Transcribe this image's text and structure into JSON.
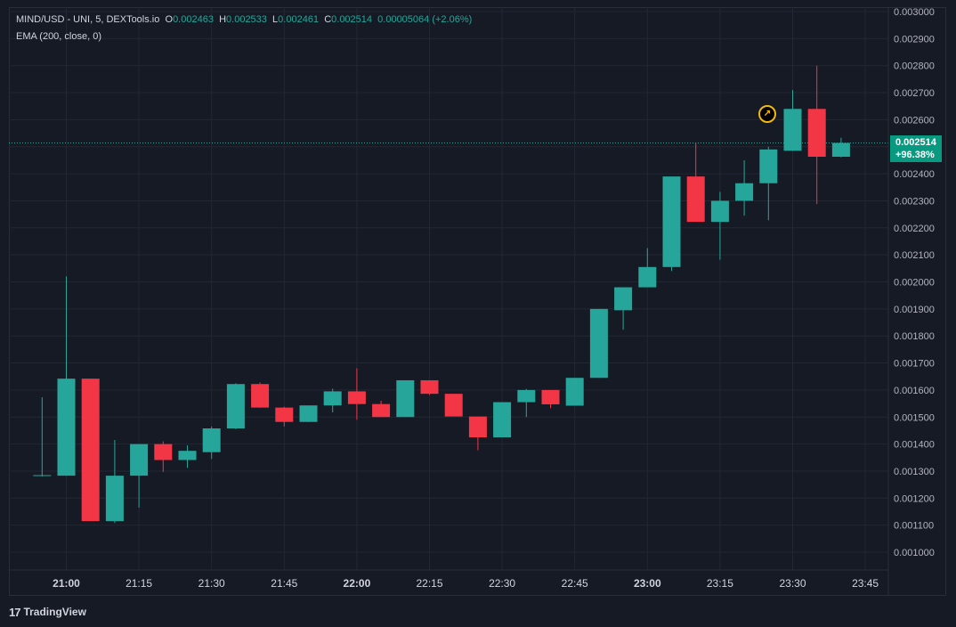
{
  "legend": {
    "symbol": "MIND/USD - UNI, 5, DEXTools.io",
    "o_label": "O",
    "o_value": "0.002463",
    "h_label": "H",
    "h_value": "0.002533",
    "l_label": "L",
    "l_value": "0.002461",
    "c_label": "C",
    "c_value": "0.002514",
    "change": "0.00005064 (+2.06%)"
  },
  "indicator": "EMA (200, close, 0)",
  "last_price": {
    "price": "0.002514",
    "percent": "+96.38%"
  },
  "badge_icon": "rocket-icon",
  "footer": {
    "logo_glyph": "17",
    "brand": "TradingView"
  },
  "colors": {
    "up": "#26a69a",
    "down": "#f23645",
    "background": "#161a25",
    "grid": "#232733",
    "text": "#d1d4dc",
    "price_tag": "#089981"
  },
  "chart_data": {
    "type": "candlestick",
    "interval_minutes": 5,
    "ylim": [
      0.00095,
      0.003
    ],
    "y_ticks": [
      "0.001000",
      "0.001100",
      "0.001200",
      "0.001300",
      "0.001400",
      "0.001500",
      "0.001600",
      "0.001700",
      "0.001800",
      "0.001900",
      "0.002000",
      "0.002100",
      "0.002200",
      "0.002300",
      "0.002400",
      "0.002500",
      "0.002600",
      "0.002700",
      "0.002800",
      "0.002900",
      "0.003000"
    ],
    "x_ticks": [
      "21:00",
      "21:15",
      "21:30",
      "21:45",
      "22:00",
      "22:15",
      "22:30",
      "22:45",
      "23:00",
      "23:15",
      "23:30",
      "23:45"
    ],
    "x_ticks_bold": [
      "21:00",
      "22:00",
      "23:00"
    ],
    "last_price_line": 0.002514,
    "candles": [
      {
        "t": "20:55",
        "o": 0.001282,
        "h": 0.001573,
        "l": 0.00128,
        "c": 0.001285
      },
      {
        "t": "21:00",
        "o": 0.001283,
        "h": 0.00202,
        "l": 0.001283,
        "c": 0.001642
      },
      {
        "t": "21:05",
        "o": 0.001642,
        "h": 0.001642,
        "l": 0.001115,
        "c": 0.001115
      },
      {
        "t": "21:10",
        "o": 0.001115,
        "h": 0.001415,
        "l": 0.001108,
        "c": 0.001283
      },
      {
        "t": "21:15",
        "o": 0.001283,
        "h": 0.0014,
        "l": 0.001165,
        "c": 0.0014
      },
      {
        "t": "21:20",
        "o": 0.0014,
        "h": 0.00141,
        "l": 0.001297,
        "c": 0.001341
      },
      {
        "t": "21:25",
        "o": 0.001341,
        "h": 0.001395,
        "l": 0.001312,
        "c": 0.001375
      },
      {
        "t": "21:30",
        "o": 0.00137,
        "h": 0.001465,
        "l": 0.001345,
        "c": 0.001458
      },
      {
        "t": "21:35",
        "o": 0.001458,
        "h": 0.001625,
        "l": 0.001455,
        "c": 0.001622
      },
      {
        "t": "21:40",
        "o": 0.001622,
        "h": 0.001628,
        "l": 0.001535,
        "c": 0.001535
      },
      {
        "t": "21:45",
        "o": 0.001535,
        "h": 0.001538,
        "l": 0.001465,
        "c": 0.001482
      },
      {
        "t": "21:50",
        "o": 0.001482,
        "h": 0.001543,
        "l": 0.001482,
        "c": 0.001543
      },
      {
        "t": "21:55",
        "o": 0.001543,
        "h": 0.001605,
        "l": 0.001517,
        "c": 0.001595
      },
      {
        "t": "22:00",
        "o": 0.001595,
        "h": 0.00168,
        "l": 0.00149,
        "c": 0.001548
      },
      {
        "t": "22:05",
        "o": 0.001548,
        "h": 0.00156,
        "l": 0.0015,
        "c": 0.0015
      },
      {
        "t": "22:10",
        "o": 0.0015,
        "h": 0.001636,
        "l": 0.0015,
        "c": 0.001636
      },
      {
        "t": "22:15",
        "o": 0.001636,
        "h": 0.001636,
        "l": 0.001582,
        "c": 0.001586
      },
      {
        "t": "22:20",
        "o": 0.001586,
        "h": 0.001586,
        "l": 0.001502,
        "c": 0.001502
      },
      {
        "t": "22:25",
        "o": 0.001502,
        "h": 0.001502,
        "l": 0.001377,
        "c": 0.001425
      },
      {
        "t": "22:30",
        "o": 0.001425,
        "h": 0.001555,
        "l": 0.001425,
        "c": 0.001555
      },
      {
        "t": "22:35",
        "o": 0.001555,
        "h": 0.001604,
        "l": 0.0015,
        "c": 0.0016
      },
      {
        "t": "22:40",
        "o": 0.0016,
        "h": 0.0016,
        "l": 0.001533,
        "c": 0.001547
      },
      {
        "t": "22:45",
        "o": 0.001542,
        "h": 0.001645,
        "l": 0.001542,
        "c": 0.001645
      },
      {
        "t": "22:50",
        "o": 0.001645,
        "h": 0.0019,
        "l": 0.001645,
        "c": 0.0019
      },
      {
        "t": "22:55",
        "o": 0.001895,
        "h": 0.00198,
        "l": 0.001823,
        "c": 0.00198
      },
      {
        "t": "23:00",
        "o": 0.00198,
        "h": 0.002125,
        "l": 0.00198,
        "c": 0.002055
      },
      {
        "t": "23:05",
        "o": 0.002055,
        "h": 0.00239,
        "l": 0.00204,
        "c": 0.00239
      },
      {
        "t": "23:10",
        "o": 0.00239,
        "h": 0.002515,
        "l": 0.002222,
        "c": 0.002222
      },
      {
        "t": "23:15",
        "o": 0.002222,
        "h": 0.002333,
        "l": 0.002082,
        "c": 0.0023
      },
      {
        "t": "23:20",
        "o": 0.0023,
        "h": 0.00245,
        "l": 0.002245,
        "c": 0.002365
      },
      {
        "t": "23:25",
        "o": 0.002365,
        "h": 0.0025,
        "l": 0.002228,
        "c": 0.00249
      },
      {
        "t": "23:30",
        "o": 0.002485,
        "h": 0.00271,
        "l": 0.002485,
        "c": 0.00264
      },
      {
        "t": "23:35",
        "o": 0.00264,
        "h": 0.0028,
        "l": 0.002288,
        "c": 0.002463
      },
      {
        "t": "23:40",
        "o": 0.002463,
        "h": 0.002533,
        "l": 0.002461,
        "c": 0.002514
      }
    ]
  }
}
